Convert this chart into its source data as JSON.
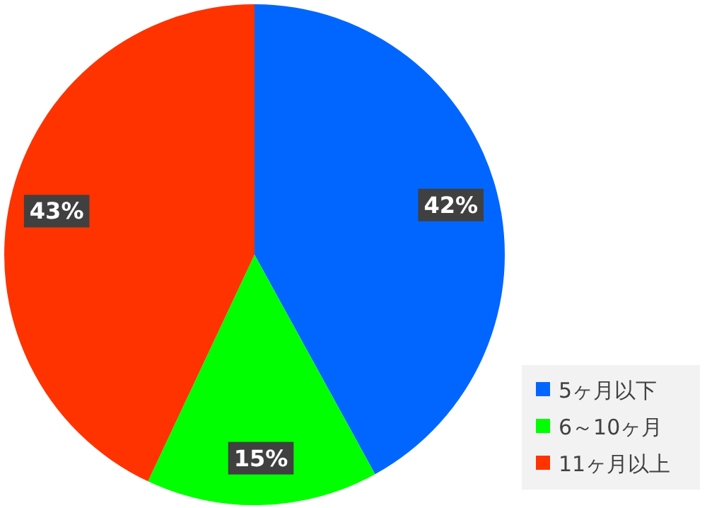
{
  "chart_data": {
    "type": "pie",
    "categories": [
      "5ヶ月以下",
      "6～10ヶ月",
      "11ヶ月以上"
    ],
    "values": [
      42,
      15,
      43
    ],
    "colors": [
      "#0066ff",
      "#00ff00",
      "#ff3300"
    ],
    "value_labels": [
      "42%",
      "15%",
      "43%"
    ],
    "legend": "bottom right"
  }
}
